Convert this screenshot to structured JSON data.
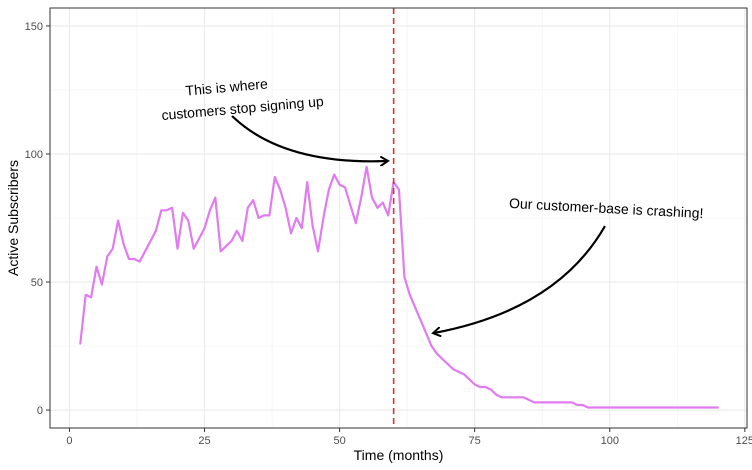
{
  "chart_data": {
    "type": "line",
    "title": "",
    "xlabel": "Time (months)",
    "ylabel": "Active Subscribers",
    "xlim": [
      -3.6,
      125.4
    ],
    "ylim": [
      -7,
      157
    ],
    "x_ticks": [
      0,
      25,
      50,
      75,
      100,
      125
    ],
    "y_ticks": [
      0,
      50,
      100,
      150
    ],
    "grid": true,
    "legend": "none",
    "series": [
      {
        "color": "#e07bf0",
        "x": [
          2,
          3,
          4,
          5,
          6,
          7,
          8,
          9,
          10,
          11,
          12,
          13,
          14,
          15,
          16,
          17,
          18,
          19,
          20,
          21,
          22,
          23,
          24,
          25,
          26,
          27,
          28,
          29,
          30,
          31,
          32,
          33,
          34,
          35,
          36,
          37,
          38,
          39,
          40,
          41,
          42,
          43,
          44,
          45,
          46,
          47,
          48,
          49,
          50,
          51,
          52,
          53,
          54,
          55,
          56,
          57,
          58,
          59,
          60,
          61,
          62,
          63,
          64,
          65,
          66,
          67,
          68,
          69,
          70,
          71,
          72,
          73,
          74,
          75,
          76,
          77,
          78,
          79,
          80,
          81,
          82,
          83,
          84,
          85,
          86,
          87,
          88,
          89,
          90,
          91,
          92,
          93,
          94,
          95,
          96,
          97,
          98,
          99,
          100,
          101,
          102,
          103,
          104,
          105,
          106,
          107,
          108,
          109,
          110,
          111,
          112,
          113,
          114,
          115,
          116,
          117,
          118,
          119,
          120
        ],
        "y": [
          26,
          45,
          44,
          56,
          49,
          60,
          63,
          74,
          65,
          59,
          59,
          58,
          62,
          66,
          70,
          78,
          78,
          79,
          63,
          77,
          74,
          63,
          67,
          71,
          78,
          83,
          62,
          64,
          66,
          70,
          66,
          79,
          82,
          75,
          76,
          76,
          91,
          86,
          79,
          69,
          75,
          71,
          89,
          72,
          62,
          75,
          86,
          92,
          88,
          87,
          80,
          73,
          83,
          95,
          83,
          79,
          81,
          76,
          89,
          86,
          52,
          45,
          40,
          35,
          30,
          25,
          22,
          20,
          18,
          16,
          15,
          14,
          12,
          10,
          9,
          9,
          8,
          6,
          5,
          5,
          5,
          5,
          5,
          4,
          3,
          3,
          3,
          3,
          3,
          3,
          3,
          3,
          2,
          2,
          1,
          1,
          1,
          1,
          1,
          1,
          1,
          1,
          1,
          1,
          1,
          1,
          1,
          1,
          1,
          1,
          1,
          1,
          1,
          1,
          1,
          1,
          1,
          1,
          1
        ]
      }
    ],
    "vline": {
      "x": 60,
      "color": "#e03030",
      "style": "dashed"
    },
    "annotations": [
      {
        "line1": "This is where",
        "line2": "customers stop signing up",
        "arrow_to": [
          60,
          97
        ]
      },
      {
        "line1": "Our customer-base is crashing!",
        "arrow_to": [
          68,
          30
        ]
      }
    ]
  }
}
